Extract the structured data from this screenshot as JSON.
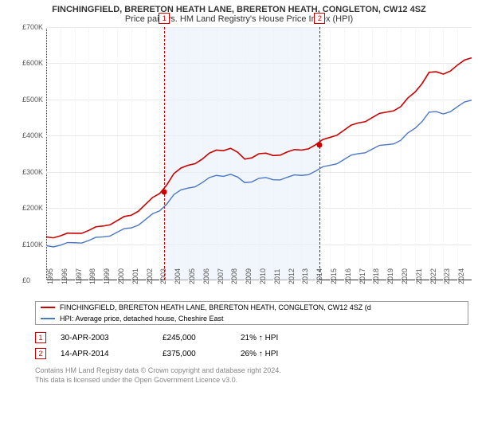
{
  "title": "FINCHINGFIELD, BRERETON HEATH LANE, BRERETON HEATH, CONGLETON, CW12 4SZ",
  "subtitle": "Price paid vs. HM Land Registry's House Price Index (HPI)",
  "chart": {
    "type": "line",
    "background_color": "#ffffff",
    "grid_color": "#e8e8e8",
    "axis_color": "#333333",
    "x": {
      "min": 1995,
      "max": 2025,
      "ticks": [
        1995,
        1996,
        1997,
        1998,
        1999,
        2000,
        2001,
        2002,
        2003,
        2004,
        2005,
        2006,
        2007,
        2008,
        2009,
        2010,
        2011,
        2012,
        2013,
        2014,
        2015,
        2016,
        2017,
        2018,
        2019,
        2020,
        2021,
        2022,
        2023,
        2024
      ],
      "tick_labels": [
        "1995",
        "1996",
        "1997",
        "1998",
        "1999",
        "2000",
        "2001",
        "2002",
        "2003",
        "2004",
        "2005",
        "2006",
        "2007",
        "2008",
        "2009",
        "2010",
        "2011",
        "2012",
        "2013",
        "2014",
        "2015",
        "2016",
        "2017",
        "2018",
        "2019",
        "2020",
        "2021",
        "2022",
        "2023",
        "2024"
      ]
    },
    "y": {
      "min": 0,
      "max": 700000,
      "ticks": [
        0,
        100000,
        200000,
        300000,
        400000,
        500000,
        600000,
        700000
      ],
      "tick_labels": [
        "£0",
        "£100K",
        "£200K",
        "£300K",
        "£400K",
        "£500K",
        "£600K",
        "£700K"
      ]
    },
    "shaded": {
      "from": 2003.33,
      "to": 2014.29,
      "fill": "#e6f0fa"
    },
    "vlines": [
      {
        "x": 2003.33,
        "color": "#cc0000"
      },
      {
        "x": 2014.29,
        "color": "#cc0000"
      }
    ],
    "index_markers": [
      {
        "n": "1",
        "x": 2003.33,
        "color": "#cc0000"
      },
      {
        "n": "2",
        "x": 2014.29,
        "color": "#cc0000"
      }
    ],
    "series": [
      {
        "name": "property",
        "color": "#cc0000",
        "width": 1.6,
        "x": [
          1995,
          1996,
          1997,
          1998,
          1999,
          2000,
          2001,
          2002,
          2003,
          2004,
          2005,
          2006,
          2007,
          2008,
          2009,
          2010,
          2011,
          2012,
          2013,
          2014,
          2015,
          2016,
          2017,
          2018,
          2019,
          2020,
          2021,
          2022,
          2023,
          2024,
          2025
        ],
        "y": [
          120000,
          123000,
          130000,
          138000,
          150000,
          165000,
          180000,
          210000,
          240000,
          295000,
          318000,
          335000,
          360000,
          365000,
          335000,
          350000,
          345000,
          355000,
          360000,
          375000,
          395000,
          415000,
          435000,
          450000,
          465000,
          480000,
          520000,
          575000,
          570000,
          595000,
          615000
        ]
      },
      {
        "name": "hpi",
        "color": "#4a78c4",
        "width": 1.4,
        "x": [
          1995,
          1996,
          1997,
          1998,
          1999,
          2000,
          2001,
          2002,
          2003,
          2004,
          2005,
          2006,
          2007,
          2008,
          2009,
          2010,
          2011,
          2012,
          2013,
          2014,
          2015,
          2016,
          2017,
          2018,
          2019,
          2020,
          2021,
          2022,
          2023,
          2024,
          2025
        ],
        "y": [
          96000,
          97000,
          104000,
          110000,
          120000,
          133000,
          145000,
          168000,
          192000,
          237000,
          255000,
          270000,
          290000,
          293000,
          270000,
          282000,
          278000,
          285000,
          290000,
          302000,
          318000,
          334000,
          350000,
          363000,
          375000,
          387000,
          420000,
          465000,
          460000,
          480000,
          498000
        ]
      }
    ],
    "points": [
      {
        "x": 2003.33,
        "y": 245000,
        "color": "#cc0000"
      },
      {
        "x": 2014.29,
        "y": 375000,
        "color": "#cc0000"
      }
    ]
  },
  "legend": {
    "rows": [
      {
        "color": "#cc0000",
        "label": "FINCHINGFIELD, BRERETON HEATH LANE, BRERETON HEATH, CONGLETON, CW12 4SZ (d"
      },
      {
        "color": "#4a78c4",
        "label": "HPI: Average price, detached house, Cheshire East"
      }
    ]
  },
  "events": [
    {
      "n": "1",
      "color": "#cc0000",
      "date": "30-APR-2003",
      "price": "£245,000",
      "delta": "21% ↑ HPI"
    },
    {
      "n": "2",
      "color": "#cc0000",
      "date": "14-APR-2014",
      "price": "£375,000",
      "delta": "26% ↑ HPI"
    }
  ],
  "footer": {
    "line1": "Contains HM Land Registry data © Crown copyright and database right 2024.",
    "line2": "This data is licensed under the Open Government Licence v3.0."
  }
}
